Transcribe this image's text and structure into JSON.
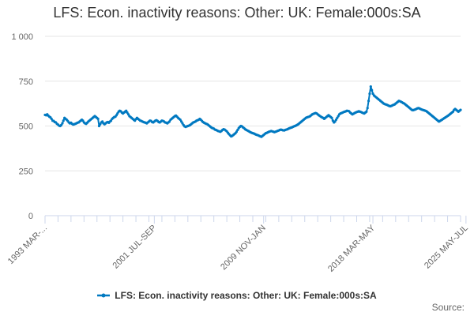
{
  "chart_data": {
    "type": "line",
    "title": "LFS: Econ. inactivity reasons: Other: UK: Female:000s:SA",
    "xlabel": "",
    "ylabel": "",
    "x_tick_labels": [
      "1993 MAR-...",
      "2001 JUL-SEP",
      "2009 NOV-JAN",
      "2018 MAR-MAY",
      "2025 MAY-JUL"
    ],
    "x_tick_index": [
      0,
      101,
      202,
      303,
      389
    ],
    "y_ticks": [
      0,
      250,
      500,
      750,
      1000
    ],
    "y_tick_labels": [
      "0",
      "250",
      "500",
      "750",
      "1 000"
    ],
    "ylim": [
      0,
      1000
    ],
    "grid": true,
    "legend_position": "bottom",
    "series": [
      {
        "name": "LFS: Econ. inactivity reasons: Other: UK: Female:000s:SA",
        "color": "#0079c1",
        "values": [
          562,
          560,
          565,
          558,
          552,
          548,
          540,
          530,
          528,
          522,
          520,
          512,
          508,
          502,
          500,
          505,
          515,
          530,
          545,
          540,
          535,
          528,
          520,
          515,
          518,
          512,
          508,
          510,
          512,
          515,
          518,
          520,
          525,
          530,
          535,
          530,
          520,
          515,
          512,
          518,
          525,
          530,
          535,
          540,
          545,
          550,
          555,
          550,
          545,
          540,
          500,
          510,
          520,
          525,
          515,
          510,
          515,
          520,
          522,
          518,
          525,
          530,
          540,
          545,
          550,
          552,
          560,
          570,
          580,
          585,
          582,
          575,
          570,
          575,
          580,
          585,
          575,
          565,
          555,
          550,
          545,
          540,
          535,
          530,
          538,
          545,
          540,
          535,
          530,
          528,
          525,
          522,
          520,
          518,
          515,
          520,
          525,
          530,
          528,
          522,
          520,
          525,
          530,
          532,
          528,
          522,
          520,
          525,
          530,
          528,
          525,
          520,
          518,
          515,
          520,
          525,
          535,
          540,
          545,
          550,
          555,
          558,
          552,
          545,
          540,
          535,
          525,
          515,
          505,
          498,
          495,
          498,
          500,
          502,
          505,
          510,
          515,
          520,
          522,
          525,
          530,
          532,
          535,
          540,
          535,
          528,
          522,
          518,
          515,
          512,
          510,
          505,
          500,
          495,
          490,
          488,
          485,
          480,
          478,
          475,
          472,
          470,
          468,
          472,
          478,
          482,
          480,
          475,
          470,
          462,
          455,
          448,
          442,
          445,
          450,
          455,
          460,
          468,
          478,
          488,
          495,
          500,
          498,
          492,
          488,
          482,
          478,
          475,
          472,
          468,
          465,
          462,
          460,
          458,
          455,
          452,
          450,
          448,
          445,
          442,
          440,
          445,
          450,
          455,
          460,
          462,
          465,
          468,
          470,
          472,
          470,
          468,
          466,
          468,
          470,
          473,
          475,
          478,
          480,
          478,
          476,
          475,
          478,
          480,
          482,
          485,
          488,
          490,
          492,
          495,
          498,
          500,
          503,
          506,
          510,
          515,
          520,
          525,
          530,
          535,
          540,
          545,
          548,
          550,
          552,
          555,
          560,
          565,
          568,
          570,
          572,
          570,
          565,
          560,
          556,
          552,
          548,
          545,
          540,
          545,
          550,
          555,
          560,
          555,
          550,
          545,
          530,
          520,
          525,
          535,
          545,
          555,
          565,
          570,
          572,
          575,
          578,
          580,
          582,
          585,
          584,
          582,
          575,
          570,
          565,
          568,
          572,
          575,
          578,
          580,
          582,
          580,
          578,
          575,
          572,
          570,
          575,
          580,
          600,
          640,
          680,
          720,
          700,
          680,
          670,
          665,
          660,
          655,
          650,
          645,
          640,
          635,
          630,
          625,
          622,
          620,
          618,
          615,
          612,
          610,
          612,
          615,
          618,
          620,
          625,
          630,
          635,
          640,
          638,
          635,
          632,
          628,
          625,
          620,
          615,
          610,
          605,
          600,
          595,
          590,
          588,
          590,
          592,
          595,
          598,
          600,
          598,
          595,
          592,
          590,
          588,
          586,
          584,
          580,
          575,
          570,
          565,
          560,
          555,
          550,
          545,
          540,
          535,
          530,
          525,
          528,
          532,
          536,
          540,
          544,
          548,
          552,
          556,
          560,
          565,
          570,
          575,
          580,
          590,
          595,
          590,
          585,
          580,
          585,
          590
        ]
      }
    ]
  },
  "legend": {
    "label": "LFS: Econ. inactivity reasons: Other: UK: Female:000s:SA"
  },
  "footer": {
    "source_label": "Source:"
  }
}
